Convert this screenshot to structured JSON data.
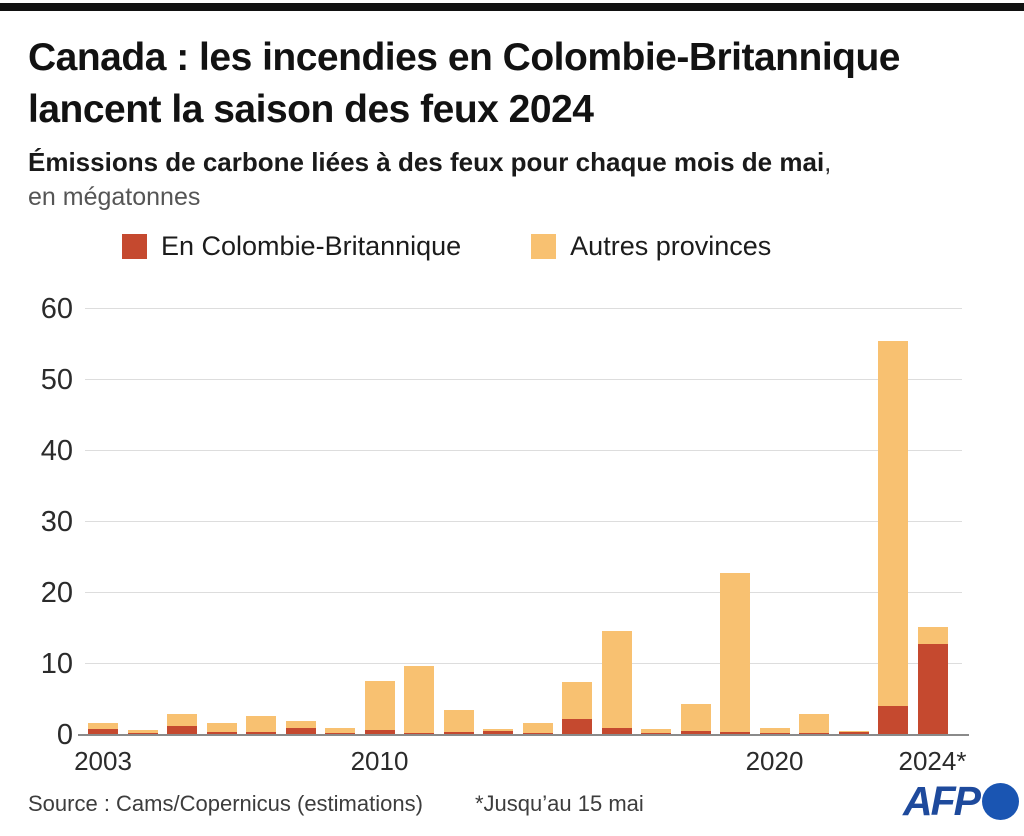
{
  "header": {
    "title_line1": "Canada : les incendies en Colombie-Britannique",
    "title_line2": "lancent la saison des feux 2024",
    "subtitle_bold": "Émissions de carbone liées à des feux pour chaque mois de mai",
    "subtitle_comma": ",",
    "subtitle_unit": "en mégatonnes"
  },
  "legend": {
    "items": [
      {
        "label": "En Colombie-Britannique",
        "color": "#c5492f"
      },
      {
        "label": "Autres provinces",
        "color": "#f8c171"
      }
    ]
  },
  "chart_data": {
    "type": "bar",
    "stacked": true,
    "title": "Émissions de carbone liées à des feux pour chaque mois de mai, en mégatonnes",
    "xlabel": "",
    "ylabel": "mégatonnes",
    "ylim": [
      0,
      60
    ],
    "yticks": [
      0,
      10,
      20,
      30,
      40,
      50,
      60
    ],
    "grid": "horizontal",
    "legend_position": "top",
    "categories": [
      2003,
      2004,
      2005,
      2006,
      2007,
      2008,
      2009,
      2010,
      2011,
      2012,
      2013,
      2014,
      2015,
      2016,
      2017,
      2018,
      2019,
      2020,
      2021,
      2022,
      2023,
      2024
    ],
    "series": [
      {
        "name": "En Colombie-Britannique",
        "color": "#c5492f",
        "values": [
          0.7,
          0.2,
          1.1,
          0.3,
          0.3,
          0.8,
          0.15,
          0.6,
          0.15,
          0.3,
          0.4,
          0.2,
          2.1,
          0.9,
          0.15,
          0.4,
          0.25,
          0.1,
          0.1,
          0.3,
          4.0,
          12.7
        ]
      },
      {
        "name": "Autres provinces",
        "color": "#f8c171",
        "values": [
          0.8,
          0.4,
          1.7,
          1.3,
          2.2,
          1.1,
          0.75,
          6.9,
          9.45,
          3.1,
          0.3,
          1.3,
          5.3,
          13.6,
          0.6,
          3.9,
          22.4,
          0.8,
          2.7,
          0.15,
          51.3,
          2.4
        ]
      }
    ],
    "x_tick_labels": [
      {
        "index": 0,
        "label": "2003"
      },
      {
        "index": 7,
        "label": "2010"
      },
      {
        "index": 17,
        "label": "2020"
      },
      {
        "index": 21,
        "label": "2024*"
      }
    ]
  },
  "footer": {
    "source": "Source : Cams/Copernicus (estimations)",
    "note": "*Jusqu’au 15 mai",
    "logo_text": "AFP"
  }
}
